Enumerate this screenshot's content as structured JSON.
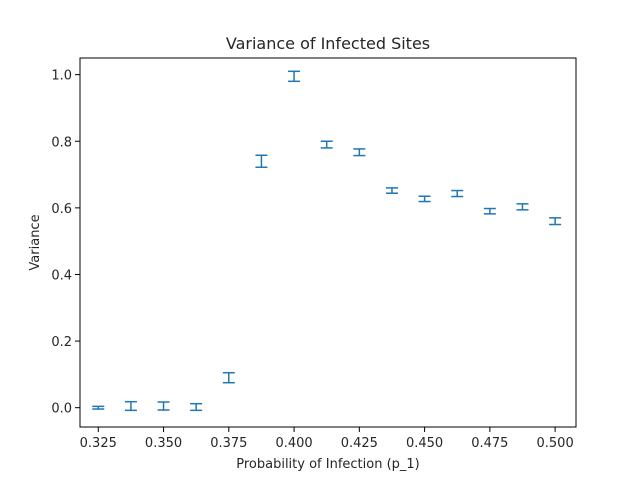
{
  "chart_data": {
    "type": "scatter",
    "title": "Variance of Infected Sites",
    "xlabel": "Probability of Infection (p_1)",
    "ylabel": "Variance",
    "xlim": [
      0.318,
      0.508
    ],
    "ylim": [
      -0.058,
      1.05
    ],
    "xticks": [
      "0.325",
      "0.350",
      "0.375",
      "0.400",
      "0.425",
      "0.450",
      "0.475",
      "0.500"
    ],
    "yticks": [
      "0.0",
      "0.2",
      "0.4",
      "0.6",
      "0.8",
      "1.0"
    ],
    "grid": false,
    "color": "#1f77b4",
    "series": [
      {
        "x": [
          0.325,
          0.3375,
          0.35,
          0.3625,
          0.375,
          0.3875,
          0.4,
          0.4125,
          0.425,
          0.4375,
          0.45,
          0.4625,
          0.475,
          0.4875,
          0.5
        ],
        "y": [
          0.0,
          0.005,
          0.005,
          0.002,
          0.09,
          0.74,
          0.995,
          0.79,
          0.767,
          0.652,
          0.627,
          0.643,
          0.59,
          0.603,
          0.56
        ],
        "yerr": [
          0.004,
          0.013,
          0.012,
          0.01,
          0.015,
          0.018,
          0.015,
          0.01,
          0.01,
          0.008,
          0.008,
          0.009,
          0.008,
          0.009,
          0.01
        ]
      }
    ]
  }
}
